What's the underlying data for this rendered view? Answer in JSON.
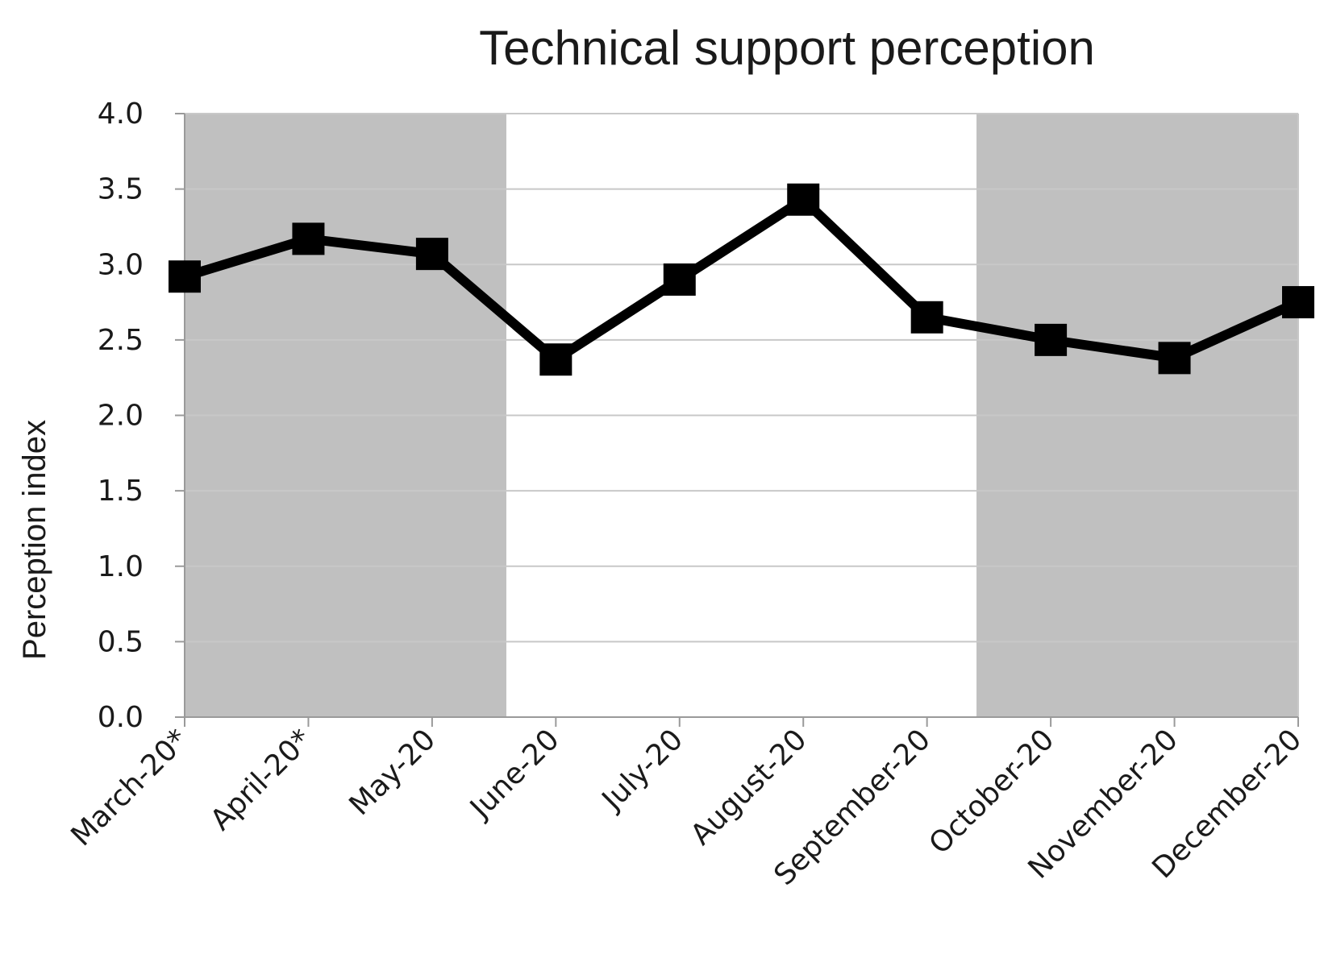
{
  "chart_data": {
    "type": "line",
    "title": "Technical support perception",
    "xlabel": "",
    "ylabel": "Perception index",
    "categories": [
      "March-20*",
      "April-20*",
      "May-20",
      "June-20",
      "July-20",
      "August-20",
      "September-20",
      "October-20",
      "November-20",
      "December-20"
    ],
    "series": [
      {
        "values": [
          2.92,
          3.17,
          3.07,
          2.37,
          2.9,
          3.43,
          2.65,
          2.5,
          2.38,
          2.75
        ]
      }
    ],
    "ylim": [
      0,
      4
    ],
    "yticks": [
      "0.0",
      "0.5",
      "1.0",
      "1.5",
      "2.0",
      "2.5",
      "3.0",
      "3.5",
      "4.0"
    ],
    "shaded_ranges": [
      {
        "from": "March-20*",
        "to": "May-20"
      },
      {
        "from": "October-20",
        "to": "December-20"
      }
    ],
    "grid": true,
    "legend": "none",
    "colors": {
      "line": "#000000",
      "marker": "#000000",
      "shade": "#c0c0c0",
      "grid": "#c8c8c8"
    }
  }
}
